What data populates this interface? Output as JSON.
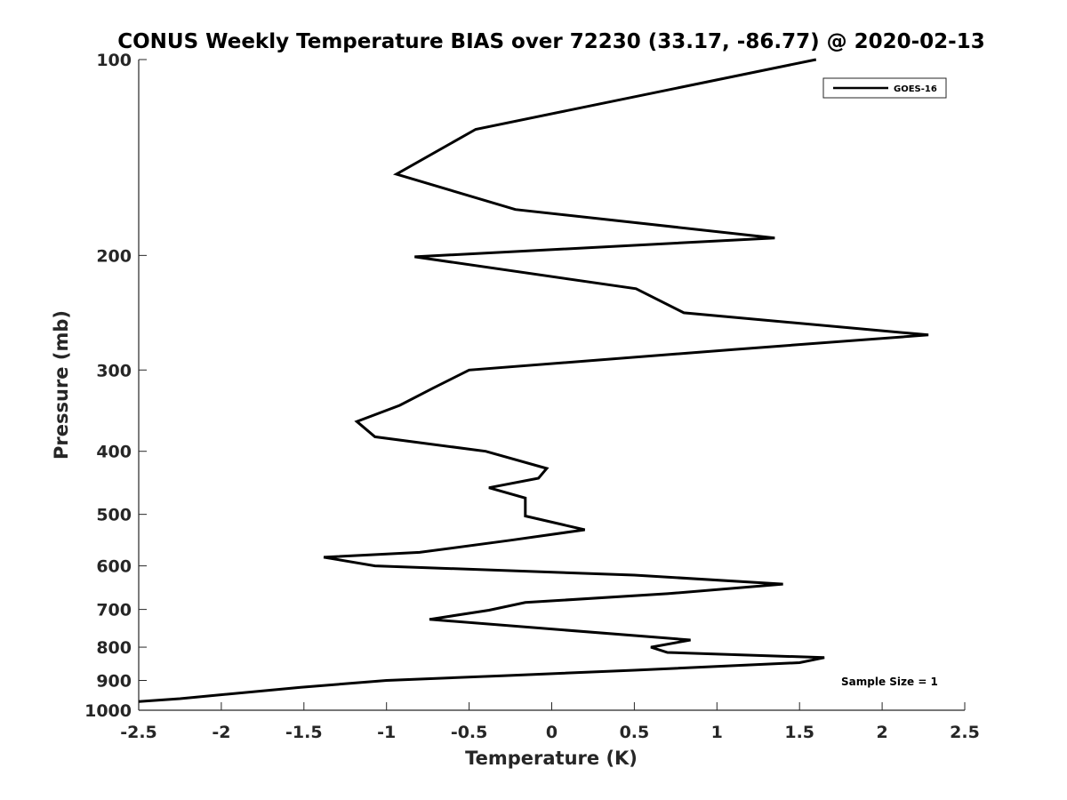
{
  "chart_data": {
    "type": "line",
    "title": "CONUS Weekly Temperature BIAS over 72230 (33.17, -86.77) @ 2020-02-13",
    "xlabel": "Temperature (K)",
    "ylabel": "Pressure (mb)",
    "xlim": [
      -2.5,
      2.5
    ],
    "ylim": [
      1000,
      100
    ],
    "yscale": "log",
    "y_reversed": true,
    "grid": false,
    "legend_position": "top-right",
    "x_ticks": [
      "-2.5",
      "-2",
      "-1.5",
      "-1",
      "-0.5",
      "0",
      "0.5",
      "1",
      "1.5",
      "2",
      "2.5"
    ],
    "y_ticks": [
      "100",
      "200",
      "300",
      "400",
      "500",
      "600",
      "700",
      "800",
      "900",
      "1000"
    ],
    "annotation": "Sample Size = 1",
    "series": [
      {
        "name": "GOES-16",
        "color": "#000000",
        "points": [
          {
            "x": 1.6,
            "p": 100
          },
          {
            "x": -0.46,
            "p": 128
          },
          {
            "x": -0.94,
            "p": 150
          },
          {
            "x": -0.22,
            "p": 170
          },
          {
            "x": 1.35,
            "p": 188
          },
          {
            "x": -0.83,
            "p": 201
          },
          {
            "x": 0.51,
            "p": 225
          },
          {
            "x": 0.8,
            "p": 245
          },
          {
            "x": 2.28,
            "p": 265
          },
          {
            "x": 1.1,
            "p": 279
          },
          {
            "x": -0.5,
            "p": 300
          },
          {
            "x": -0.72,
            "p": 320
          },
          {
            "x": -0.92,
            "p": 340
          },
          {
            "x": -1.18,
            "p": 360
          },
          {
            "x": -1.07,
            "p": 380
          },
          {
            "x": -0.4,
            "p": 400
          },
          {
            "x": -0.03,
            "p": 425
          },
          {
            "x": -0.08,
            "p": 440
          },
          {
            "x": -0.38,
            "p": 455
          },
          {
            "x": -0.16,
            "p": 472
          },
          {
            "x": -0.16,
            "p": 503
          },
          {
            "x": 0.2,
            "p": 528
          },
          {
            "x": -0.25,
            "p": 548
          },
          {
            "x": -0.8,
            "p": 572
          },
          {
            "x": -1.38,
            "p": 582
          },
          {
            "x": -1.07,
            "p": 600
          },
          {
            "x": 0.5,
            "p": 620
          },
          {
            "x": 1.4,
            "p": 640
          },
          {
            "x": 0.7,
            "p": 662
          },
          {
            "x": -0.16,
            "p": 683
          },
          {
            "x": -0.38,
            "p": 702
          },
          {
            "x": -0.74,
            "p": 725
          },
          {
            "x": 0.84,
            "p": 780
          },
          {
            "x": 0.6,
            "p": 800
          },
          {
            "x": 0.7,
            "p": 815
          },
          {
            "x": 1.65,
            "p": 830
          },
          {
            "x": 1.5,
            "p": 845
          },
          {
            "x": 0.5,
            "p": 868
          },
          {
            "x": -0.3,
            "p": 885
          },
          {
            "x": -1.0,
            "p": 900
          },
          {
            "x": -1.52,
            "p": 922
          },
          {
            "x": -2.25,
            "p": 960
          },
          {
            "x": -2.5,
            "p": 970
          }
        ]
      }
    ]
  }
}
